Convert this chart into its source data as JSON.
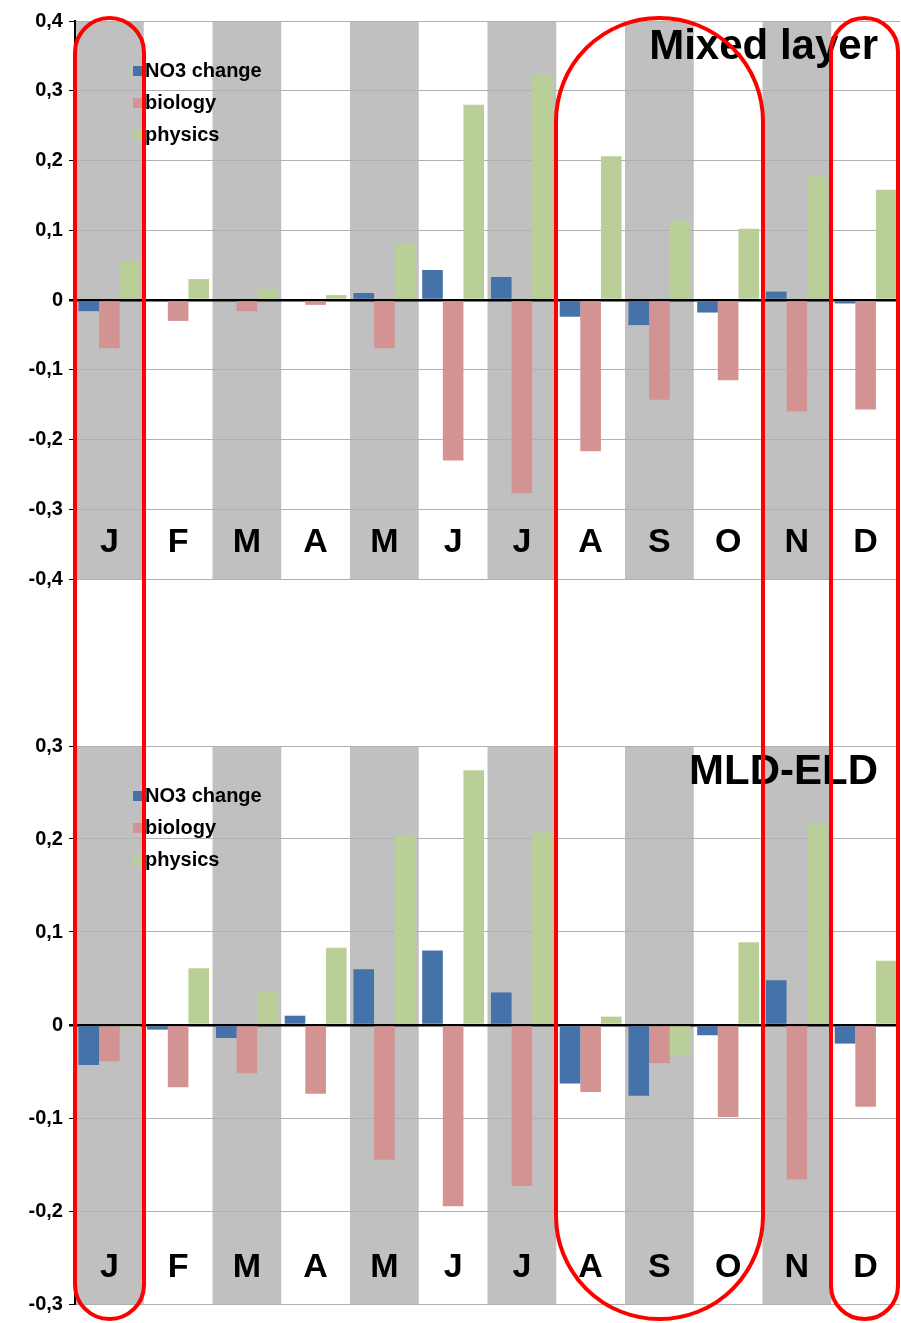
{
  "chart_data": [
    {
      "type": "bar",
      "title": "Mixed layer",
      "categories": [
        "J",
        "F",
        "M",
        "A",
        "M",
        "J",
        "J",
        "A",
        "S",
        "O",
        "N",
        "D"
      ],
      "series": [
        {
          "name": "NO3 change",
          "color": "#4672aa",
          "values": [
            -0.016,
            0,
            0,
            0,
            0.01,
            0.043,
            0.033,
            -0.024,
            -0.036,
            -0.018,
            0.012,
            -0.005
          ]
        },
        {
          "name": "biology",
          "color": "#d49393",
          "values": [
            -0.069,
            -0.03,
            -0.016,
            -0.007,
            -0.069,
            -0.23,
            -0.277,
            -0.217,
            -0.143,
            -0.115,
            -0.16,
            -0.157
          ]
        },
        {
          "name": "physics",
          "color": "#bacf98",
          "values": [
            0.055,
            0.03,
            0.015,
            0.007,
            0.08,
            0.28,
            0.323,
            0.206,
            0.114,
            0.102,
            0.177,
            0.158
          ]
        }
      ],
      "ylim": [
        -0.4,
        0.4
      ],
      "yticks": [
        {
          "value": -0.4,
          "label": "-0,4"
        },
        {
          "value": -0.3,
          "label": "-0,3"
        },
        {
          "value": -0.2,
          "label": "-0,2"
        },
        {
          "value": -0.1,
          "label": "-0,1"
        },
        0,
        {
          "value": 0.1,
          "label": "0,1"
        },
        {
          "value": 0.2,
          "label": "0,2"
        },
        {
          "value": 0.3,
          "label": "0,3"
        },
        {
          "value": 0.4,
          "label": "0,4"
        }
      ],
      "grid": "y",
      "legend": "top left"
    },
    {
      "type": "bar",
      "title": "MLD-ELD",
      "categories": [
        "J",
        "F",
        "M",
        "A",
        "M",
        "J",
        "J",
        "A",
        "S",
        "O",
        "N",
        "D"
      ],
      "series": [
        {
          "name": "NO3 change",
          "color": "#4672aa",
          "values": [
            -0.043,
            -0.005,
            -0.014,
            0.01,
            0.06,
            0.08,
            0.035,
            -0.063,
            -0.076,
            -0.011,
            0.048,
            -0.02
          ]
        },
        {
          "name": "biology",
          "color": "#d49393",
          "values": [
            -0.039,
            -0.067,
            -0.052,
            -0.074,
            -0.145,
            -0.195,
            -0.173,
            -0.072,
            -0.041,
            -0.099,
            -0.166,
            -0.088
          ]
        },
        {
          "name": "physics",
          "color": "#bacf98",
          "values": [
            -0.003,
            0.061,
            0.036,
            0.083,
            0.204,
            0.274,
            0.207,
            0.009,
            -0.032,
            0.089,
            0.216,
            0.069
          ]
        }
      ],
      "ylim": [
        -0.3,
        0.3
      ],
      "yticks": [
        {
          "value": -0.3,
          "label": "-0,3"
        },
        {
          "value": -0.2,
          "label": "-0,2"
        },
        {
          "value": -0.1,
          "label": "-0,1"
        },
        0,
        {
          "value": 0.1,
          "label": "0,1"
        },
        {
          "value": 0.2,
          "label": "0,2"
        },
        {
          "value": 0.3,
          "label": "0,3"
        }
      ],
      "grid": "y",
      "legend": "top left"
    }
  ]
}
